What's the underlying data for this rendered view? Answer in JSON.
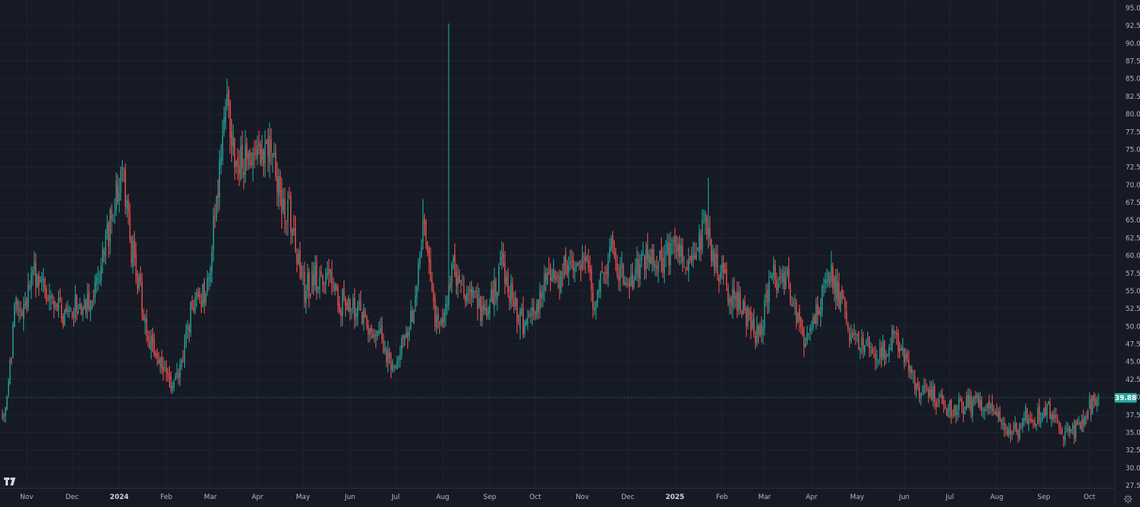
{
  "colors": {
    "background": "#161a25",
    "grid": "#1f2330",
    "up": "#26a69a",
    "down": "#ef5350",
    "axis_text": "#b2b5be",
    "last_price_badge": "#26a69a"
  },
  "logo": {
    "name": "tradingview-logo-icon",
    "text": "TV"
  },
  "settings": {
    "icon": "gear-icon"
  },
  "last_price_label": "39.88",
  "chart_data": {
    "type": "candlestick",
    "y_axis": {
      "position": "right",
      "ylim": [
        27.5,
        95
      ],
      "ticks": [
        "95.00",
        "92.50",
        "90.00",
        "87.50",
        "85.00",
        "82.50",
        "80.00",
        "77.50",
        "75.00",
        "72.50",
        "70.00",
        "67.50",
        "65.00",
        "62.50",
        "60.00",
        "57.50",
        "55.00",
        "52.50",
        "50.00",
        "47.50",
        "45.00",
        "42.50",
        "40.00",
        "37.50",
        "35.00",
        "32.50",
        "30.00",
        "27.50"
      ]
    },
    "x_axis": {
      "start": "2023-10-16",
      "end": "2025-10-07",
      "ticks": [
        {
          "label": "Nov",
          "date": "2023-11-01"
        },
        {
          "label": "Dec",
          "date": "2023-12-01"
        },
        {
          "label": "2024",
          "date": "2024-01-01",
          "bold": true
        },
        {
          "label": "Feb",
          "date": "2024-02-01"
        },
        {
          "label": "Mar",
          "date": "2024-03-01"
        },
        {
          "label": "Apr",
          "date": "2024-04-01"
        },
        {
          "label": "May",
          "date": "2024-05-01"
        },
        {
          "label": "Jun",
          "date": "2024-06-01"
        },
        {
          "label": "Jul",
          "date": "2024-07-01"
        },
        {
          "label": "Aug",
          "date": "2024-08-01"
        },
        {
          "label": "Sep",
          "date": "2024-09-01"
        },
        {
          "label": "Oct",
          "date": "2024-10-01"
        },
        {
          "label": "Nov",
          "date": "2024-11-01"
        },
        {
          "label": "Dec",
          "date": "2024-12-01"
        },
        {
          "label": "2025",
          "date": "2025-01-01",
          "bold": true
        },
        {
          "label": "Feb",
          "date": "2025-02-01"
        },
        {
          "label": "Mar",
          "date": "2025-03-01"
        },
        {
          "label": "Apr",
          "date": "2025-04-01"
        },
        {
          "label": "May",
          "date": "2025-05-01"
        },
        {
          "label": "Jun",
          "date": "2025-06-01"
        },
        {
          "label": "Jul",
          "date": "2025-07-01"
        },
        {
          "label": "Aug",
          "date": "2025-08-01"
        },
        {
          "label": "Sep",
          "date": "2025-09-01"
        },
        {
          "label": "Oct",
          "date": "2025-10-01"
        }
      ]
    },
    "grid": true,
    "last_price": 39.88,
    "close_path": [
      [
        "2023-10-16",
        37.0
      ],
      [
        "2023-10-20",
        41.5
      ],
      [
        "2023-10-25",
        54.0
      ],
      [
        "2023-10-30",
        52.0
      ],
      [
        "2023-11-05",
        58.0
      ],
      [
        "2023-11-10",
        55.5
      ],
      [
        "2023-11-16",
        55.5
      ],
      [
        "2023-11-22",
        53.0
      ],
      [
        "2023-11-28",
        51.0
      ],
      [
        "2023-12-03",
        53.5
      ],
      [
        "2023-12-10",
        53.0
      ],
      [
        "2023-12-17",
        55.5
      ],
      [
        "2023-12-22",
        60.0
      ],
      [
        "2023-12-28",
        67.0
      ],
      [
        "2024-01-03",
        72.0
      ],
      [
        "2024-01-08",
        62.0
      ],
      [
        "2024-01-14",
        56.0
      ],
      [
        "2024-01-21",
        48.0
      ],
      [
        "2024-01-26",
        46.5
      ],
      [
        "2024-02-01",
        43.0
      ],
      [
        "2024-02-05",
        42.0
      ],
      [
        "2024-02-10",
        44.5
      ],
      [
        "2024-02-15",
        50.0
      ],
      [
        "2024-02-21",
        55.0
      ],
      [
        "2024-02-27",
        54.0
      ],
      [
        "2024-03-02",
        62.0
      ],
      [
        "2024-03-07",
        72.0
      ],
      [
        "2024-03-12",
        82.0
      ],
      [
        "2024-03-15",
        76.0
      ],
      [
        "2024-03-20",
        73.0
      ],
      [
        "2024-03-25",
        74.5
      ],
      [
        "2024-03-30",
        73.0
      ],
      [
        "2024-04-05",
        73.5
      ],
      [
        "2024-04-10",
        75.0
      ],
      [
        "2024-04-15",
        69.0
      ],
      [
        "2024-04-22",
        66.0
      ],
      [
        "2024-04-27",
        60.0
      ],
      [
        "2024-05-02",
        55.0
      ],
      [
        "2024-05-08",
        57.0
      ],
      [
        "2024-05-14",
        55.5
      ],
      [
        "2024-05-19",
        57.0
      ],
      [
        "2024-05-24",
        53.0
      ],
      [
        "2024-05-30",
        54.0
      ],
      [
        "2024-06-05",
        52.0
      ],
      [
        "2024-06-10",
        51.0
      ],
      [
        "2024-06-15",
        50.0
      ],
      [
        "2024-06-20",
        49.0
      ],
      [
        "2024-06-26",
        46.0
      ],
      [
        "2024-07-01",
        44.0
      ],
      [
        "2024-07-05",
        47.0
      ],
      [
        "2024-07-10",
        50.0
      ],
      [
        "2024-07-16",
        57.0
      ],
      [
        "2024-07-19",
        66.0
      ],
      [
        "2024-07-23",
        61.0
      ],
      [
        "2024-07-27",
        50.0
      ],
      [
        "2024-08-01",
        49.5
      ],
      [
        "2024-08-04",
        54.0
      ],
      [
        "2024-08-08",
        59.0
      ],
      [
        "2024-08-12",
        56.0
      ],
      [
        "2024-08-17",
        54.5
      ],
      [
        "2024-08-22",
        54.0
      ],
      [
        "2024-08-27",
        52.0
      ],
      [
        "2024-09-01",
        53.5
      ],
      [
        "2024-09-06",
        56.0
      ],
      [
        "2024-09-09",
        59.0
      ],
      [
        "2024-09-14",
        55.0
      ],
      [
        "2024-09-19",
        52.0
      ],
      [
        "2024-09-25",
        50.0
      ],
      [
        "2024-09-30",
        52.0
      ],
      [
        "2024-10-05",
        55.0
      ],
      [
        "2024-10-10",
        57.0
      ],
      [
        "2024-10-16",
        56.0
      ],
      [
        "2024-10-21",
        58.5
      ],
      [
        "2024-10-26",
        57.0
      ],
      [
        "2024-10-31",
        59.5
      ],
      [
        "2024-11-04",
        62.0
      ],
      [
        "2024-11-07",
        56.0
      ],
      [
        "2024-11-09",
        51.0
      ],
      [
        "2024-11-12",
        55.0
      ],
      [
        "2024-11-16",
        58.0
      ],
      [
        "2024-11-20",
        62.5
      ],
      [
        "2024-11-25",
        58.0
      ],
      [
        "2024-11-30",
        56.0
      ],
      [
        "2024-12-05",
        57.0
      ],
      [
        "2024-12-11",
        59.0
      ],
      [
        "2024-12-16",
        60.0
      ],
      [
        "2024-12-21",
        59.5
      ],
      [
        "2024-12-27",
        60.0
      ],
      [
        "2025-01-02",
        60.5
      ],
      [
        "2025-01-07",
        60.0
      ],
      [
        "2025-01-12",
        59.0
      ],
      [
        "2025-01-17",
        62.0
      ],
      [
        "2025-01-22",
        65.0
      ],
      [
        "2025-01-26",
        60.0
      ],
      [
        "2025-01-31",
        57.5
      ],
      [
        "2025-02-05",
        55.0
      ],
      [
        "2025-02-10",
        54.0
      ],
      [
        "2025-02-15",
        52.0
      ],
      [
        "2025-02-20",
        50.5
      ],
      [
        "2025-02-25",
        48.0
      ],
      [
        "2025-03-02",
        53.0
      ],
      [
        "2025-03-06",
        59.0
      ],
      [
        "2025-03-10",
        56.0
      ],
      [
        "2025-03-15",
        57.0
      ],
      [
        "2025-03-20",
        53.5
      ],
      [
        "2025-03-25",
        49.0
      ],
      [
        "2025-03-30",
        47.5
      ],
      [
        "2025-04-04",
        52.0
      ],
      [
        "2025-04-09",
        55.0
      ],
      [
        "2025-04-13",
        58.0
      ],
      [
        "2025-04-18",
        55.0
      ],
      [
        "2025-04-23",
        51.5
      ],
      [
        "2025-04-28",
        48.0
      ],
      [
        "2025-05-03",
        48.0
      ],
      [
        "2025-05-08",
        47.0
      ],
      [
        "2025-05-14",
        46.0
      ],
      [
        "2025-05-19",
        46.5
      ],
      [
        "2025-05-25",
        49.0
      ],
      [
        "2025-05-30",
        47.0
      ],
      [
        "2025-06-05",
        43.0
      ],
      [
        "2025-06-10",
        41.0
      ],
      [
        "2025-06-16",
        41.5
      ],
      [
        "2025-06-21",
        40.0
      ],
      [
        "2025-06-27",
        38.5
      ],
      [
        "2025-07-02",
        38.0
      ],
      [
        "2025-07-08",
        38.5
      ],
      [
        "2025-07-14",
        39.0
      ],
      [
        "2025-07-20",
        39.5
      ],
      [
        "2025-07-26",
        39.0
      ],
      [
        "2025-07-31",
        37.5
      ],
      [
        "2025-08-05",
        36.0
      ],
      [
        "2025-08-10",
        35.5
      ],
      [
        "2025-08-15",
        35.0
      ],
      [
        "2025-08-20",
        37.5
      ],
      [
        "2025-08-25",
        37.0
      ],
      [
        "2025-08-30",
        37.5
      ],
      [
        "2025-09-04",
        38.5
      ],
      [
        "2025-09-09",
        37.0
      ],
      [
        "2025-09-14",
        35.0
      ],
      [
        "2025-09-19",
        34.5
      ],
      [
        "2025-09-24",
        36.5
      ],
      [
        "2025-09-29",
        37.5
      ],
      [
        "2025-10-04",
        39.5
      ],
      [
        "2025-10-07",
        39.88
      ]
    ],
    "notable_wicks": [
      {
        "date": "2024-08-05",
        "high": 92.8
      },
      {
        "date": "2024-03-12",
        "high": 85.0
      },
      {
        "date": "2025-01-23",
        "high": 71.0
      },
      {
        "date": "2024-01-03",
        "high": 73.5
      },
      {
        "date": "2024-07-19",
        "high": 68.0
      }
    ]
  }
}
